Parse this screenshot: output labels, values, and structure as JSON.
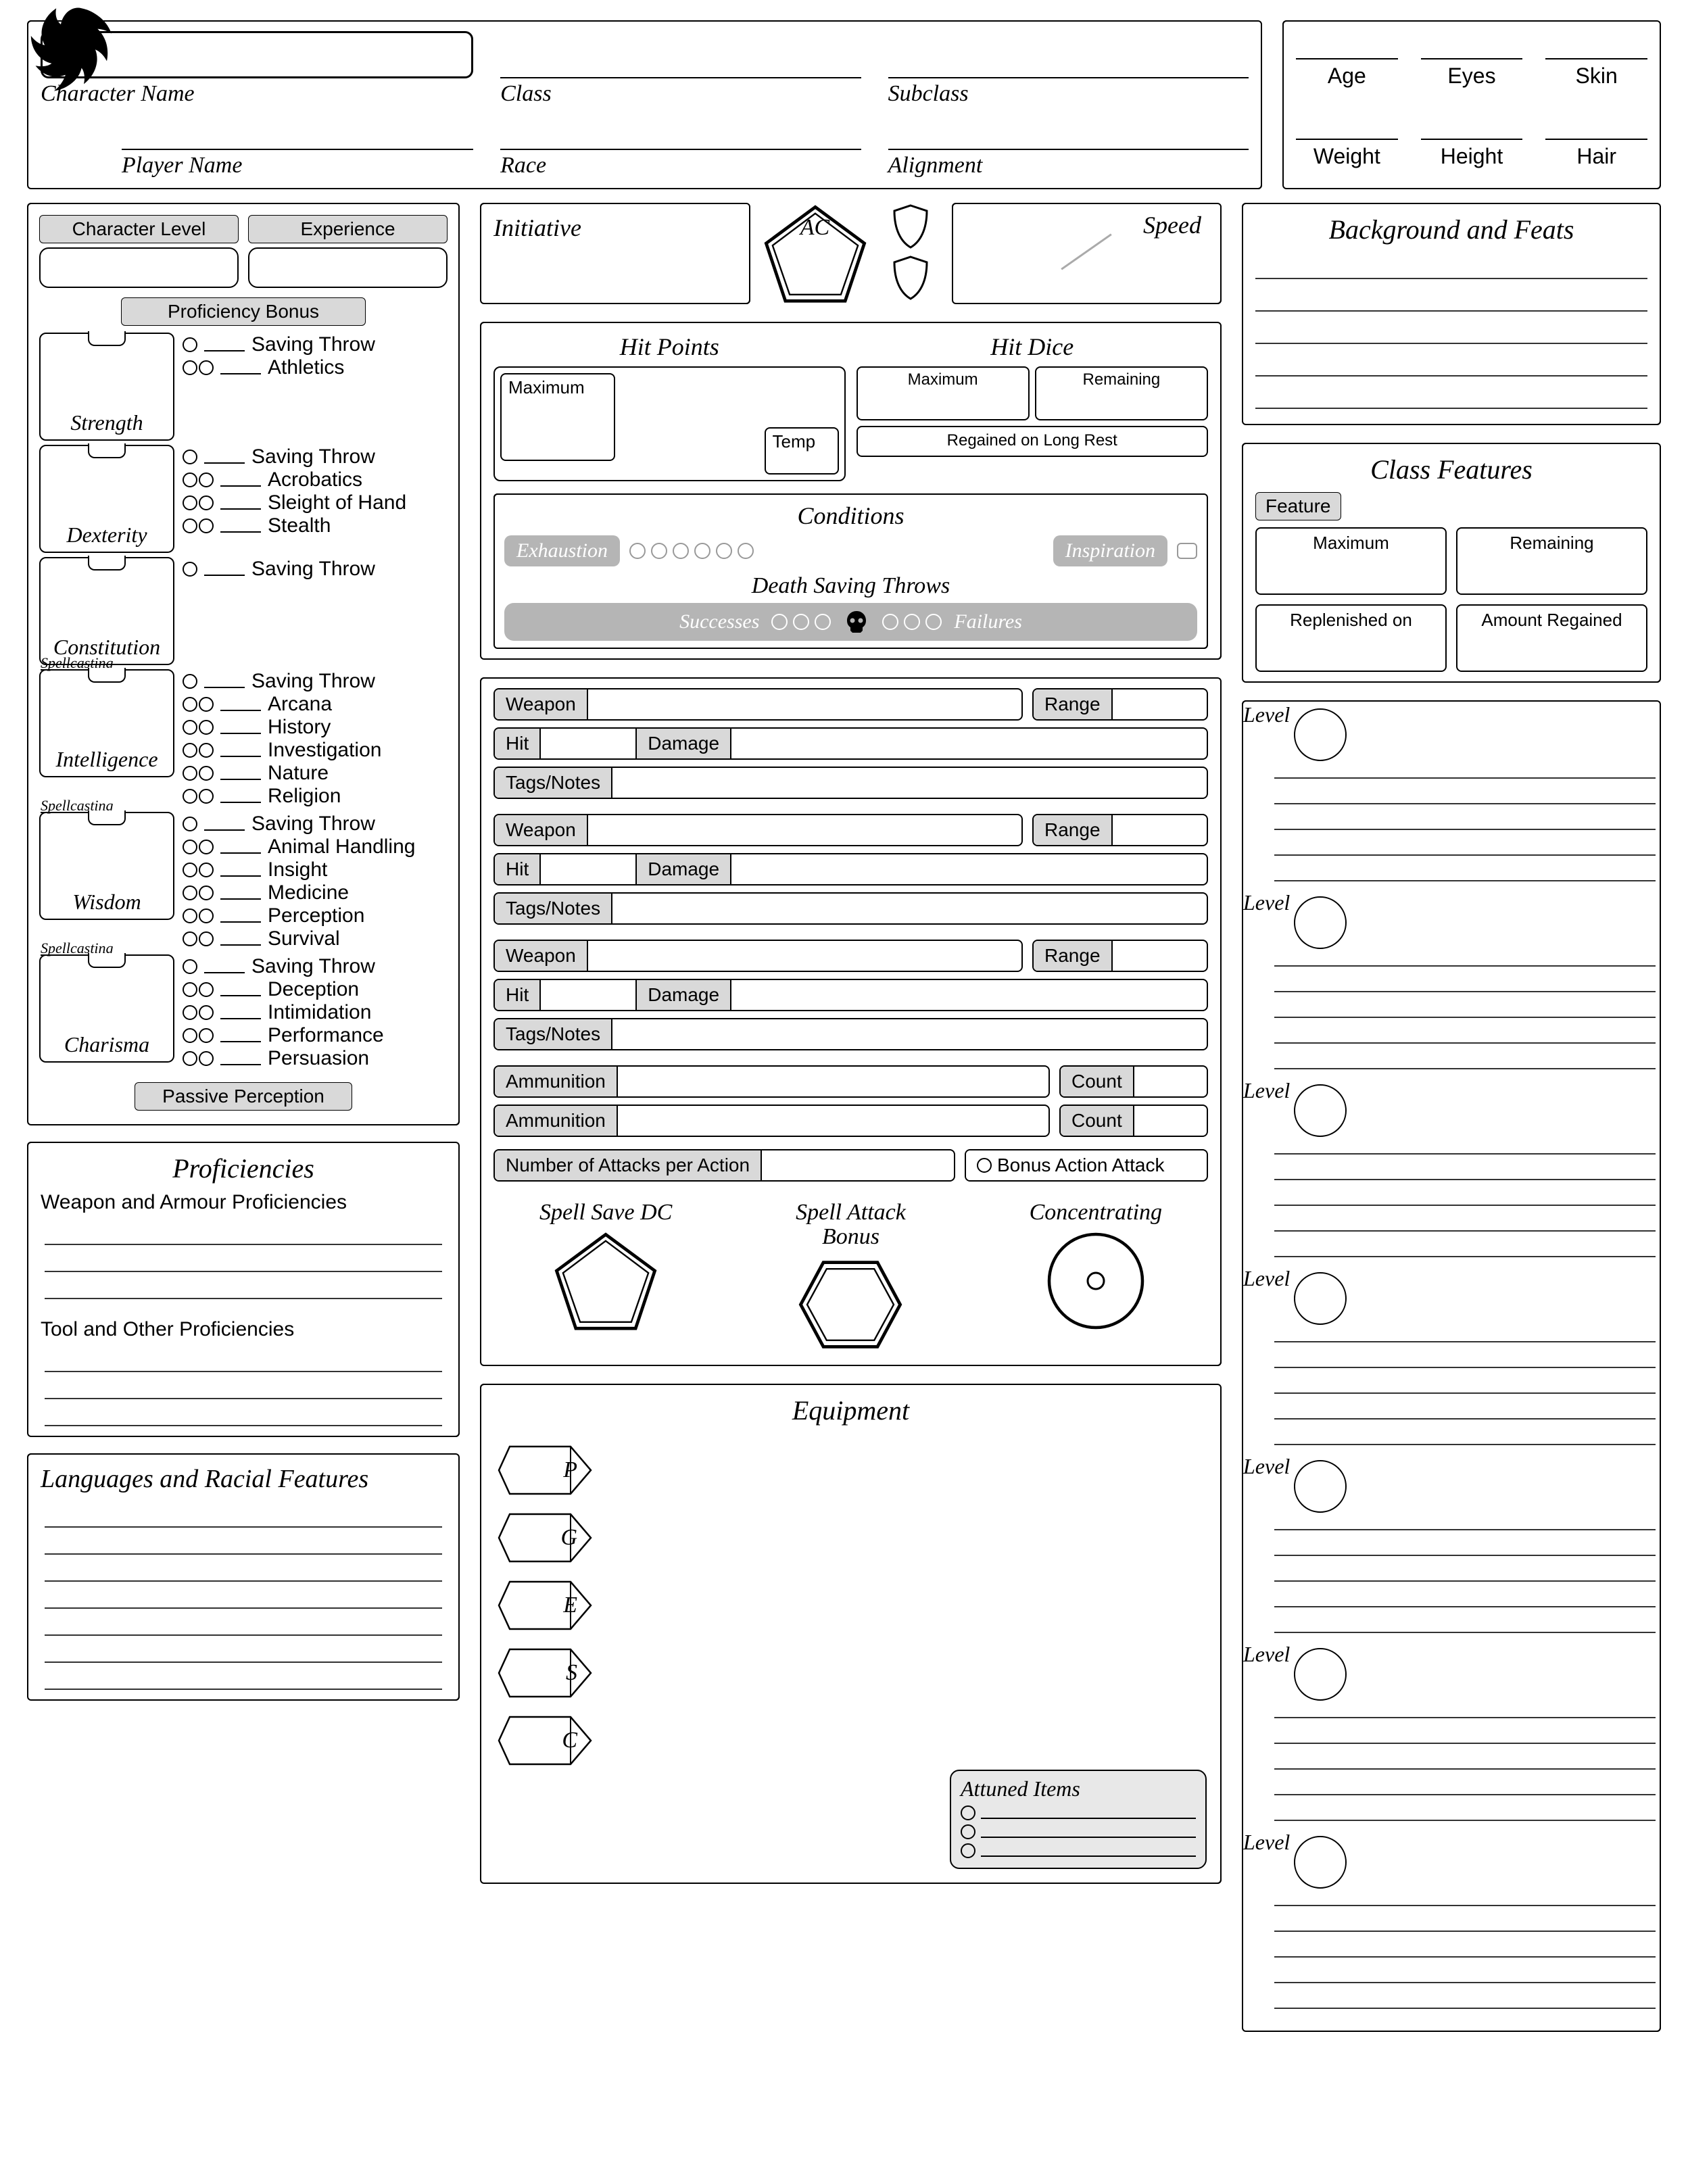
{
  "header": {
    "characterName": "Character Name",
    "playerName": "Player Name",
    "class": "Class",
    "subclass": "Subclass",
    "race": "Race",
    "alignment": "Alignment"
  },
  "physical": {
    "age": "Age",
    "eyes": "Eyes",
    "skin": "Skin",
    "weight": "Weight",
    "height": "Height",
    "hair": "Hair"
  },
  "abilitiesHeader": {
    "charLevel": "Character Level",
    "experience": "Experience",
    "profBonus": "Proficiency Bonus",
    "passivePerception": "Passive Perception"
  },
  "abilities": [
    {
      "name": "Strength",
      "spellcasting": false,
      "skills": [
        "Saving Throw",
        "Athletics"
      ]
    },
    {
      "name": "Dexterity",
      "spellcasting": false,
      "skills": [
        "Saving Throw",
        "Acrobatics",
        "Sleight of Hand",
        "Stealth"
      ]
    },
    {
      "name": "Constitution",
      "spellcasting": false,
      "skills": [
        "Saving Throw"
      ]
    },
    {
      "name": "Intelligence",
      "spellcasting": true,
      "skills": [
        "Saving Throw",
        "Arcana",
        "History",
        "Investigation",
        "Nature",
        "Religion"
      ]
    },
    {
      "name": "Wisdom",
      "spellcasting": true,
      "skills": [
        "Saving Throw",
        "Animal Handling",
        "Insight",
        "Medicine",
        "Perception",
        "Survival"
      ]
    },
    {
      "name": "Charisma",
      "spellcasting": true,
      "skills": [
        "Saving Throw",
        "Deception",
        "Intimidation",
        "Performance",
        "Persuasion"
      ]
    }
  ],
  "proficiencies": {
    "title": "Proficiencies",
    "weaponArmour": "Weapon and Armour Proficiencies",
    "toolOther": "Tool and Other Proficiencies"
  },
  "languages": {
    "title": "Languages and Racial Features"
  },
  "combat": {
    "initiative": "Initiative",
    "ac": "AC",
    "speed": "Speed",
    "hitPoints": "Hit Points",
    "hp_max": "Maximum",
    "hp_temp": "Temp",
    "hitDice": "Hit Dice",
    "hd_max": "Maximum",
    "hd_rem": "Remaining",
    "hd_regain": "Regained on Long Rest",
    "conditions": "Conditions",
    "exhaustion": "Exhaustion",
    "inspiration": "Inspiration",
    "dst": "Death Saving Throws",
    "successes": "Successes",
    "failures": "Failures"
  },
  "weapons": {
    "weapon": "Weapon",
    "range": "Range",
    "hit": "Hit",
    "damage": "Damage",
    "tags": "Tags/Notes",
    "ammo": "Ammunition",
    "count": "Count",
    "numAttacks": "Number of Attacks per Action",
    "bonusAttack": "Bonus Action Attack"
  },
  "spellCombat": {
    "saveDC": "Spell Save DC",
    "atkBonus": "Spell Attack Bonus",
    "concentrating": "Concentrating"
  },
  "equipment": {
    "title": "Equipment",
    "coins": [
      "P",
      "G",
      "E",
      "S",
      "C"
    ],
    "attuned": "Attuned Items"
  },
  "right": {
    "bgFeats": "Background and Feats",
    "classFeatures": "Class Features",
    "feature": "Feature",
    "maximum": "Maximum",
    "remaining": "Remaining",
    "replenished": "Replenished on",
    "amountRegained": "Amount Regained",
    "level": "Level"
  },
  "style": {
    "pillBg": "#d9d9d9",
    "greyBg": "#b5b5b5",
    "line": "#000000"
  }
}
